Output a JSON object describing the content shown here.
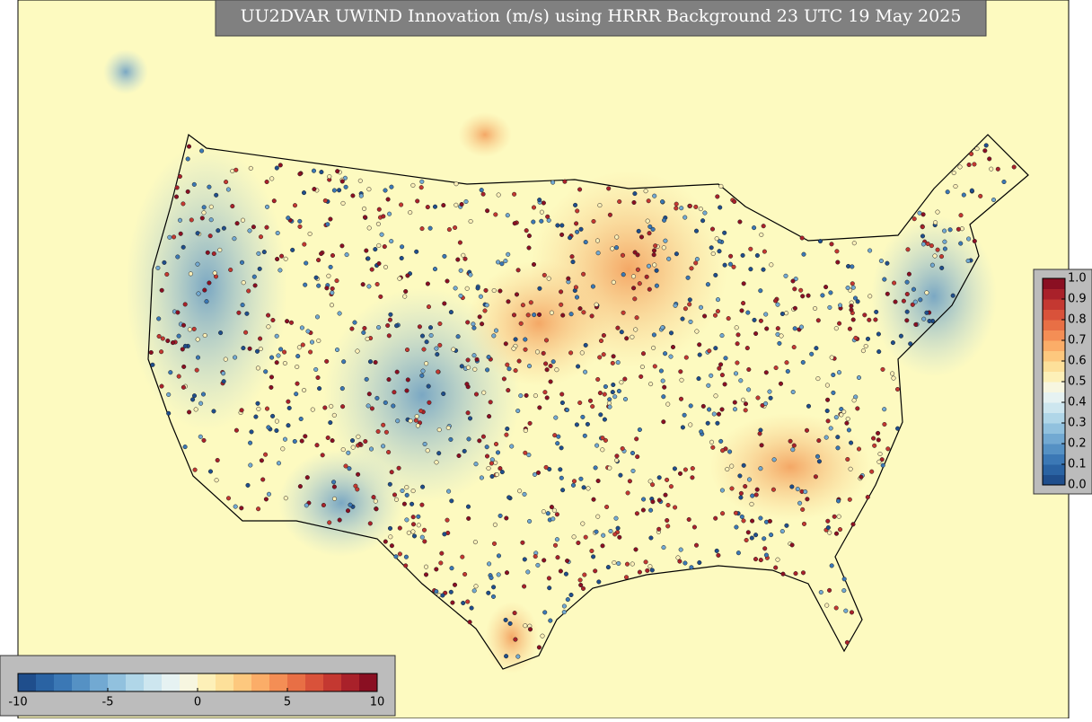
{
  "header": {
    "title": "UU2DVAR UWIND Innovation (m/s) using HRRR Background 23 UTC 19 May 2025"
  },
  "palette": [
    "#1f4e8c",
    "#2a63a3",
    "#3b78b5",
    "#5591c4",
    "#72a9d2",
    "#91c1de",
    "#b0d6e8",
    "#cde6ef",
    "#e6f2f2",
    "#f7f6e0",
    "#fdf0b8",
    "#fde09a",
    "#fdc87e",
    "#fbad68",
    "#f48e55",
    "#e86f45",
    "#d9523a",
    "#c43831",
    "#a9212a",
    "#8a0f22"
  ],
  "colorbar_horizontal": {
    "lim": [
      -10,
      10
    ],
    "ticks": [
      -10,
      -5,
      0,
      5,
      10
    ]
  },
  "colorbar_vertical": {
    "lim": [
      0,
      1
    ],
    "ticks": [
      {
        "value": 0,
        "label": "0.0"
      },
      0.1,
      0.2,
      0.3,
      0.4,
      0.5,
      0.6,
      0.7,
      0.8,
      0.9,
      {
        "value": 1,
        "label": "1.0"
      }
    ]
  }
}
